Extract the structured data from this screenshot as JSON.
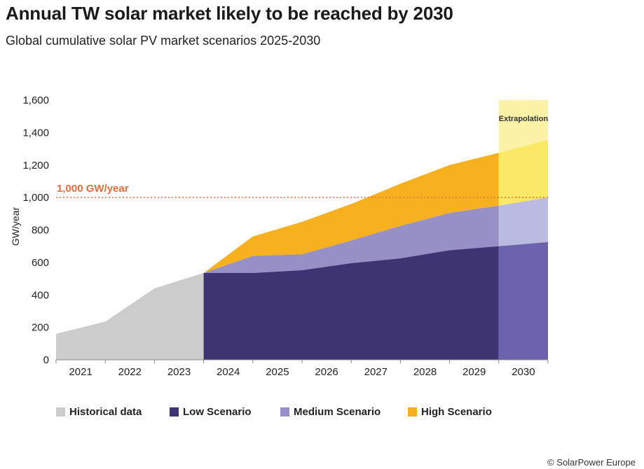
{
  "title": "Annual TW solar market likely to be reached by 2030",
  "subtitle": "Global cumulative solar PV market scenarios 2025-2030",
  "footer": "© SolarPower Europe",
  "chart_data": {
    "type": "area",
    "x": [
      2020.5,
      2021.5,
      2022.5,
      2023.5,
      2024.5,
      2025.5,
      2026.5,
      2027.5,
      2028.5,
      2029.5
    ],
    "x_tick_labels": [
      "2021",
      "2022",
      "2023",
      "2024",
      "2025",
      "2026",
      "2027",
      "2028",
      "2029",
      "2030"
    ],
    "xlim": [
      2020.5,
      2030.5
    ],
    "ylabel": "GW/year",
    "ylim": [
      0,
      1600
    ],
    "y_ticks": [
      0,
      200,
      400,
      600,
      800,
      1000,
      1200,
      1400,
      1600
    ],
    "y_tick_labels": [
      "0",
      "200",
      "400",
      "600",
      "800",
      "1,000",
      "1,200",
      "1,400",
      "1,600"
    ],
    "historical": {
      "name": "Historical data",
      "x": [
        2020.5,
        2021.5,
        2022.5,
        2023.5
      ],
      "values": [
        160,
        235,
        440,
        535
      ]
    },
    "series": [
      {
        "name": "Low Scenario",
        "x": [
          2023.5,
          2024.5,
          2025.5,
          2026.5,
          2027.5,
          2028.5,
          2029.5,
          2030.5
        ],
        "values": [
          535,
          535,
          552,
          595,
          625,
          675,
          700,
          725
        ]
      },
      {
        "name": "Medium Scenario",
        "x": [
          2023.5,
          2024.5,
          2025.5,
          2026.5,
          2027.5,
          2028.5,
          2029.5,
          2030.5
        ],
        "values": [
          535,
          640,
          650,
          735,
          825,
          905,
          950,
          1000
        ]
      },
      {
        "name": "High Scenario",
        "x": [
          2023.5,
          2024.5,
          2025.5,
          2026.5,
          2027.5,
          2028.5,
          2029.5,
          2030.5
        ],
        "values": [
          535,
          760,
          850,
          960,
          1085,
          1200,
          1275,
          1355
        ]
      }
    ],
    "reference_line": {
      "value": 1000,
      "label": "1,000 GW/year"
    },
    "extrapolation": {
      "label": "Extrapolation",
      "from": 2029.5,
      "to": 2030.5
    },
    "grid": false,
    "legend_position": "bottom"
  },
  "legend": [
    {
      "label": "Historical data",
      "color": "#cccccc"
    },
    {
      "label": "Low Scenario",
      "color": "#3e3373"
    },
    {
      "label": "Medium Scenario",
      "color": "#9690c6"
    },
    {
      "label": "High Scenario",
      "color": "#f7b11e"
    }
  ],
  "colors": {
    "historical": "#cccccc",
    "low": "#3e3373",
    "medium": "#9690c6",
    "high": "#f7b11e",
    "low_extrap": "#6b63ad",
    "medium_extrap": "#b9bce0",
    "high_extrap": "#f9e964",
    "extrap_bg": "#fbf2a7",
    "reference": "#ee6a3a"
  }
}
